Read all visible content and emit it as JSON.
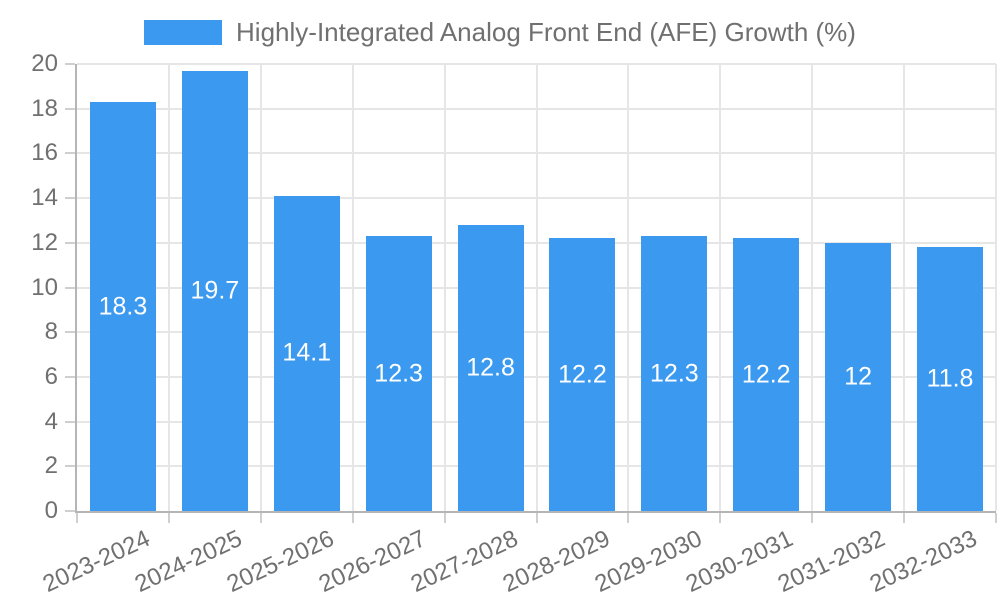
{
  "chart_data": {
    "type": "bar",
    "title": "Highly-Integrated Analog Front End (AFE) Growth (%)",
    "categories": [
      "2023-2024",
      "2024-2025",
      "2025-2026",
      "2026-2027",
      "2027-2028",
      "2028-2029",
      "2029-2030",
      "2030-2031",
      "2031-2032",
      "2032-2033"
    ],
    "values": [
      18.3,
      19.7,
      14.1,
      12.3,
      12.8,
      12.2,
      12.3,
      12.2,
      12,
      11.8
    ],
    "xlabel": "",
    "ylabel": "",
    "ylim": [
      0,
      20
    ],
    "y_ticks": [
      0,
      2,
      4,
      6,
      8,
      10,
      12,
      14,
      16,
      18,
      20
    ],
    "grid": true,
    "legend_position": "top",
    "x_label_rotation_deg": -25,
    "colors": {
      "bar": "#3B9AF0",
      "text": "#707070",
      "grid": "#E6E6E6",
      "axis": "#B5B5B5",
      "bar_label": "#FFFFFF",
      "background": "#FFFFFF"
    }
  }
}
